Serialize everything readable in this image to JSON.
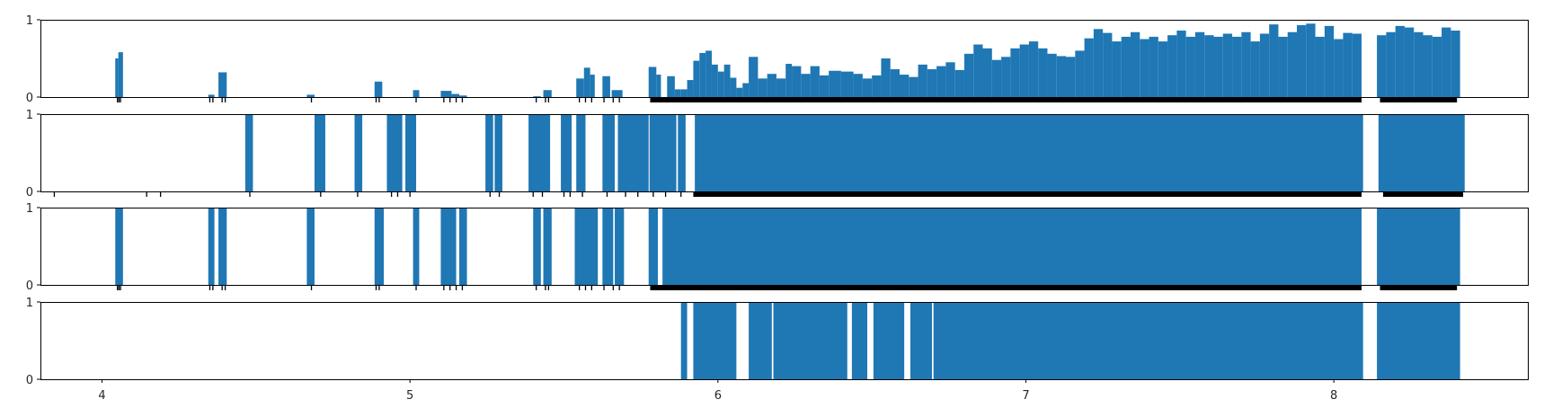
{
  "colors": {
    "bar": "#1f77b4",
    "rug": "#000000",
    "frame": "#000000",
    "text": "#262626"
  },
  "chart_data": [
    {
      "type": "bar",
      "panel": 1,
      "ylim": [
        0,
        1
      ],
      "yticks": [
        "0",
        "1"
      ],
      "xlim": [
        3.8,
        8.63
      ],
      "show_x_tick_labels": false,
      "bars": [
        [
          4.043,
          4.053,
          0.5
        ],
        [
          4.053,
          4.068,
          0.58
        ],
        [
          4.345,
          4.365,
          0.03
        ],
        [
          4.378,
          4.405,
          0.32
        ],
        [
          4.665,
          4.69,
          0.03
        ],
        [
          4.885,
          4.91,
          0.2
        ],
        [
          5.01,
          5.03,
          0.09
        ],
        [
          5.1,
          5.135,
          0.08
        ],
        [
          5.135,
          5.16,
          0.04
        ],
        [
          5.16,
          5.185,
          0.02
        ],
        [
          5.4,
          5.425,
          0.01
        ],
        [
          5.433,
          5.46,
          0.09
        ],
        [
          5.54,
          5.565,
          0.24
        ],
        [
          5.565,
          5.585,
          0.38
        ],
        [
          5.585,
          5.6,
          0.29
        ],
        [
          5.625,
          5.65,
          0.27
        ],
        [
          5.655,
          5.69,
          0.09
        ],
        [
          5.775,
          5.8,
          0.39
        ],
        [
          5.8,
          5.815,
          0.29
        ],
        [
          5.835,
          5.86,
          0.27
        ],
        [
          5.86,
          5.88,
          0.1
        ],
        [
          5.88,
          5.9,
          0.1
        ],
        [
          5.9,
          5.92,
          0.22
        ],
        [
          5.92,
          5.94,
          0.47
        ],
        [
          5.94,
          5.96,
          0.57
        ],
        [
          5.96,
          5.98,
          0.6
        ],
        [
          5.98,
          6.0,
          0.42
        ],
        [
          6.0,
          6.02,
          0.33
        ],
        [
          6.02,
          6.04,
          0.42
        ],
        [
          6.04,
          6.06,
          0.25
        ],
        [
          6.06,
          6.08,
          0.12
        ],
        [
          6.08,
          6.1,
          0.18
        ],
        [
          6.1,
          6.13,
          0.52
        ],
        [
          6.13,
          6.16,
          0.24
        ],
        [
          6.16,
          6.19,
          0.3
        ],
        [
          6.19,
          6.22,
          0.24
        ],
        [
          6.22,
          6.24,
          0.43
        ],
        [
          6.24,
          6.27,
          0.4
        ],
        [
          6.27,
          6.3,
          0.3
        ],
        [
          6.3,
          6.33,
          0.4
        ],
        [
          6.33,
          6.36,
          0.28
        ],
        [
          6.36,
          6.4,
          0.34
        ],
        [
          6.4,
          6.44,
          0.33
        ],
        [
          6.44,
          6.47,
          0.3
        ],
        [
          6.47,
          6.5,
          0.24
        ],
        [
          6.5,
          6.53,
          0.28
        ],
        [
          6.53,
          6.56,
          0.5
        ],
        [
          6.56,
          6.59,
          0.36
        ],
        [
          6.59,
          6.62,
          0.29
        ],
        [
          6.62,
          6.65,
          0.26
        ],
        [
          6.65,
          6.68,
          0.42
        ],
        [
          6.68,
          6.71,
          0.36
        ],
        [
          6.71,
          6.74,
          0.4
        ],
        [
          6.74,
          6.77,
          0.45
        ],
        [
          6.77,
          6.8,
          0.35
        ],
        [
          6.8,
          6.83,
          0.56
        ],
        [
          6.83,
          6.86,
          0.68
        ],
        [
          6.86,
          6.89,
          0.63
        ],
        [
          6.89,
          6.92,
          0.48
        ],
        [
          6.92,
          6.95,
          0.52
        ],
        [
          6.95,
          6.98,
          0.63
        ],
        [
          6.98,
          7.01,
          0.68
        ],
        [
          7.01,
          7.04,
          0.72
        ],
        [
          7.04,
          7.07,
          0.63
        ],
        [
          7.07,
          7.1,
          0.56
        ],
        [
          7.1,
          7.13,
          0.53
        ],
        [
          7.13,
          7.16,
          0.52
        ],
        [
          7.16,
          7.19,
          0.6
        ],
        [
          7.19,
          7.22,
          0.76
        ],
        [
          7.22,
          7.25,
          0.88
        ],
        [
          7.25,
          7.28,
          0.83
        ],
        [
          7.28,
          7.31,
          0.72
        ],
        [
          7.31,
          7.34,
          0.78
        ],
        [
          7.34,
          7.37,
          0.84
        ],
        [
          7.37,
          7.4,
          0.75
        ],
        [
          7.4,
          7.43,
          0.78
        ],
        [
          7.43,
          7.46,
          0.72
        ],
        [
          7.46,
          7.49,
          0.8
        ],
        [
          7.49,
          7.52,
          0.86
        ],
        [
          7.52,
          7.55,
          0.78
        ],
        [
          7.55,
          7.58,
          0.84
        ],
        [
          7.58,
          7.61,
          0.8
        ],
        [
          7.61,
          7.64,
          0.78
        ],
        [
          7.64,
          7.67,
          0.82
        ],
        [
          7.67,
          7.7,
          0.78
        ],
        [
          7.7,
          7.73,
          0.84
        ],
        [
          7.73,
          7.76,
          0.72
        ],
        [
          7.76,
          7.79,
          0.82
        ],
        [
          7.79,
          7.82,
          0.94
        ],
        [
          7.82,
          7.85,
          0.78
        ],
        [
          7.85,
          7.88,
          0.84
        ],
        [
          7.88,
          7.91,
          0.93
        ],
        [
          7.91,
          7.94,
          0.95
        ],
        [
          7.94,
          7.97,
          0.78
        ],
        [
          7.97,
          8.0,
          0.92
        ],
        [
          8.0,
          8.03,
          0.75
        ],
        [
          8.03,
          8.06,
          0.83
        ],
        [
          8.06,
          8.09,
          0.82
        ],
        [
          8.14,
          8.17,
          0.8
        ],
        [
          8.17,
          8.2,
          0.84
        ],
        [
          8.2,
          8.23,
          0.92
        ],
        [
          8.23,
          8.26,
          0.9
        ],
        [
          8.26,
          8.29,
          0.84
        ],
        [
          8.29,
          8.32,
          0.8
        ],
        [
          8.32,
          8.35,
          0.78
        ],
        [
          8.35,
          8.38,
          0.9
        ],
        [
          8.38,
          8.41,
          0.86
        ]
      ],
      "rug_dense_spans": [
        [
          5.78,
          8.09
        ],
        [
          8.15,
          8.4
        ]
      ],
      "rug_ticks": [
        4.05,
        4.055,
        4.06,
        4.35,
        4.36,
        4.39,
        4.4,
        4.68,
        4.89,
        4.9,
        5.02,
        5.11,
        5.13,
        5.15,
        5.17,
        5.41,
        5.44,
        5.45,
        5.55,
        5.57,
        5.59,
        5.63,
        5.66,
        5.68
      ]
    },
    {
      "type": "bar",
      "panel": 2,
      "ylim": [
        0,
        1
      ],
      "yticks": [
        "0",
        "1"
      ],
      "xlim": [
        3.8,
        8.63
      ],
      "show_x_tick_labels": false,
      "bars": [
        [
          4.465,
          4.49,
          1
        ],
        [
          4.69,
          4.725,
          1
        ],
        [
          4.82,
          4.845,
          1
        ],
        [
          4.925,
          4.975,
          1
        ],
        [
          4.985,
          5.02,
          1
        ],
        [
          5.245,
          5.27,
          1
        ],
        [
          5.275,
          5.3,
          1
        ],
        [
          5.385,
          5.455,
          1
        ],
        [
          5.49,
          5.525,
          1
        ],
        [
          5.54,
          5.57,
          1
        ],
        [
          5.625,
          5.665,
          1
        ],
        [
          5.675,
          5.775,
          1
        ],
        [
          5.778,
          5.865,
          1
        ],
        [
          5.87,
          5.895,
          1
        ],
        [
          5.925,
          8.095,
          1
        ],
        [
          8.145,
          8.425,
          1
        ]
      ],
      "rug_dense_spans": [
        [
          5.92,
          8.09
        ],
        [
          8.16,
          8.42
        ]
      ],
      "rug_ticks": [
        3.845,
        4.145,
        4.19,
        4.48,
        4.71,
        4.83,
        4.94,
        4.96,
        5.0,
        5.26,
        5.29,
        5.4,
        5.43,
        5.5,
        5.52,
        5.56,
        5.64,
        5.7,
        5.74,
        5.79,
        5.83,
        5.88
      ]
    },
    {
      "type": "bar",
      "panel": 3,
      "ylim": [
        0,
        1
      ],
      "yticks": [
        "0",
        "1"
      ],
      "xlim": [
        3.8,
        8.63
      ],
      "show_x_tick_labels": false,
      "bars": [
        [
          4.043,
          4.068,
          1
        ],
        [
          4.345,
          4.365,
          1
        ],
        [
          4.378,
          4.405,
          1
        ],
        [
          4.665,
          4.69,
          1
        ],
        [
          4.885,
          4.915,
          1
        ],
        [
          5.01,
          5.03,
          1
        ],
        [
          5.1,
          5.15,
          1
        ],
        [
          5.16,
          5.185,
          1
        ],
        [
          5.4,
          5.425,
          1
        ],
        [
          5.433,
          5.46,
          1
        ],
        [
          5.535,
          5.61,
          1
        ],
        [
          5.625,
          5.66,
          1
        ],
        [
          5.665,
          5.695,
          1
        ],
        [
          5.775,
          5.805,
          1
        ],
        [
          5.82,
          8.09,
          1
        ],
        [
          8.14,
          8.41,
          1
        ]
      ],
      "rug_dense_spans": [
        [
          5.78,
          8.09
        ],
        [
          8.15,
          8.4
        ]
      ],
      "rug_ticks": [
        4.05,
        4.055,
        4.06,
        4.35,
        4.36,
        4.39,
        4.4,
        4.68,
        4.89,
        4.9,
        5.02,
        5.11,
        5.13,
        5.15,
        5.17,
        5.41,
        5.44,
        5.45,
        5.55,
        5.57,
        5.59,
        5.63,
        5.66,
        5.68
      ]
    },
    {
      "type": "bar",
      "panel": 4,
      "ylim": [
        0,
        1
      ],
      "yticks": [
        "0",
        "1"
      ],
      "xlim": [
        3.8,
        8.63
      ],
      "show_x_tick_labels": true,
      "xticks": [
        4,
        5,
        6,
        7,
        8
      ],
      "xtick_labels": [
        "4",
        "5",
        "6",
        "7",
        "8"
      ],
      "bars": [
        [
          5.88,
          5.9,
          1
        ],
        [
          5.92,
          6.06,
          1
        ],
        [
          6.1,
          6.175,
          1
        ],
        [
          6.18,
          6.42,
          1
        ],
        [
          6.435,
          6.485,
          1
        ],
        [
          6.505,
          6.605,
          1
        ],
        [
          6.625,
          6.695,
          1
        ],
        [
          6.7,
          8.095,
          1
        ],
        [
          8.14,
          8.41,
          1
        ]
      ],
      "rug_dense_spans": [],
      "rug_ticks": []
    }
  ]
}
